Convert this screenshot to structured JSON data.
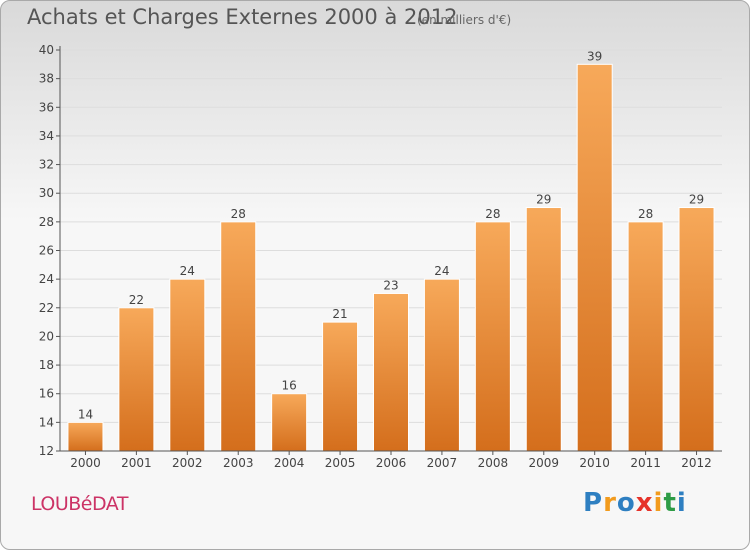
{
  "header": {
    "title": "Achats et Charges Externes 2000 à 2012",
    "subtitle": "(en milliers d'€)"
  },
  "footer": {
    "commune": "LOUBéDAT",
    "logo_letters": [
      "P",
      "r",
      "o",
      "x",
      "i",
      "t",
      "i"
    ],
    "logo_colors": [
      "#2e7fc1",
      "#f29b1d",
      "#2e7fc1",
      "#e6332a",
      "#f29b1d",
      "#2e9c46",
      "#2e7fc1"
    ]
  },
  "colors": {
    "bar_top": "#f7a95a",
    "bar_bottom": "#d46e1c",
    "gridline": "#dddddd",
    "axis": "#555555"
  },
  "chart_data": {
    "type": "bar",
    "categories": [
      "2000",
      "2001",
      "2002",
      "2003",
      "2004",
      "2005",
      "2006",
      "2007",
      "2008",
      "2009",
      "2010",
      "2011",
      "2012"
    ],
    "values": [
      14,
      22,
      24,
      28,
      16,
      21,
      23,
      24,
      28,
      29,
      39,
      28,
      29
    ],
    "ylim": [
      12,
      40
    ],
    "yticks": [
      12,
      14,
      16,
      18,
      20,
      22,
      24,
      26,
      28,
      30,
      32,
      34,
      36,
      38,
      40
    ],
    "grid": true,
    "data_labels": true
  }
}
